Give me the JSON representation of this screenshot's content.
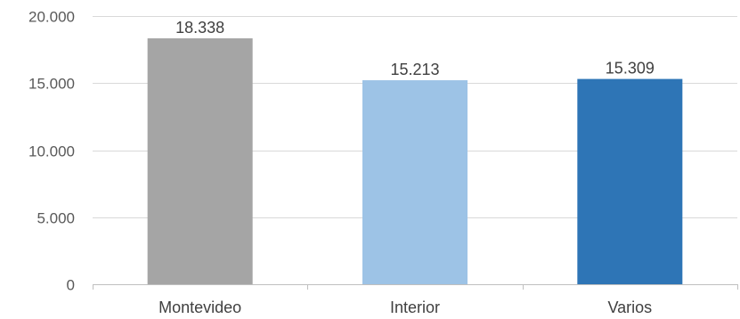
{
  "chart_data": {
    "type": "bar",
    "categories": [
      "Montevideo",
      "Interior",
      "Varios"
    ],
    "values": [
      18338,
      15213,
      15309
    ],
    "data_labels": [
      "18.338",
      "15.213",
      "15.309"
    ],
    "title": "",
    "xlabel": "",
    "ylabel": "",
    "ylim": [
      0,
      20000
    ],
    "yticks": [
      0,
      5000,
      10000,
      15000,
      20000
    ],
    "ytick_labels": [
      "0",
      "5.000",
      "10.000",
      "15.000",
      "20.000"
    ],
    "bar_colors": [
      "#a5a5a5",
      "#9dc3e6",
      "#2e75b6"
    ],
    "grid": true,
    "legend": "none"
  }
}
